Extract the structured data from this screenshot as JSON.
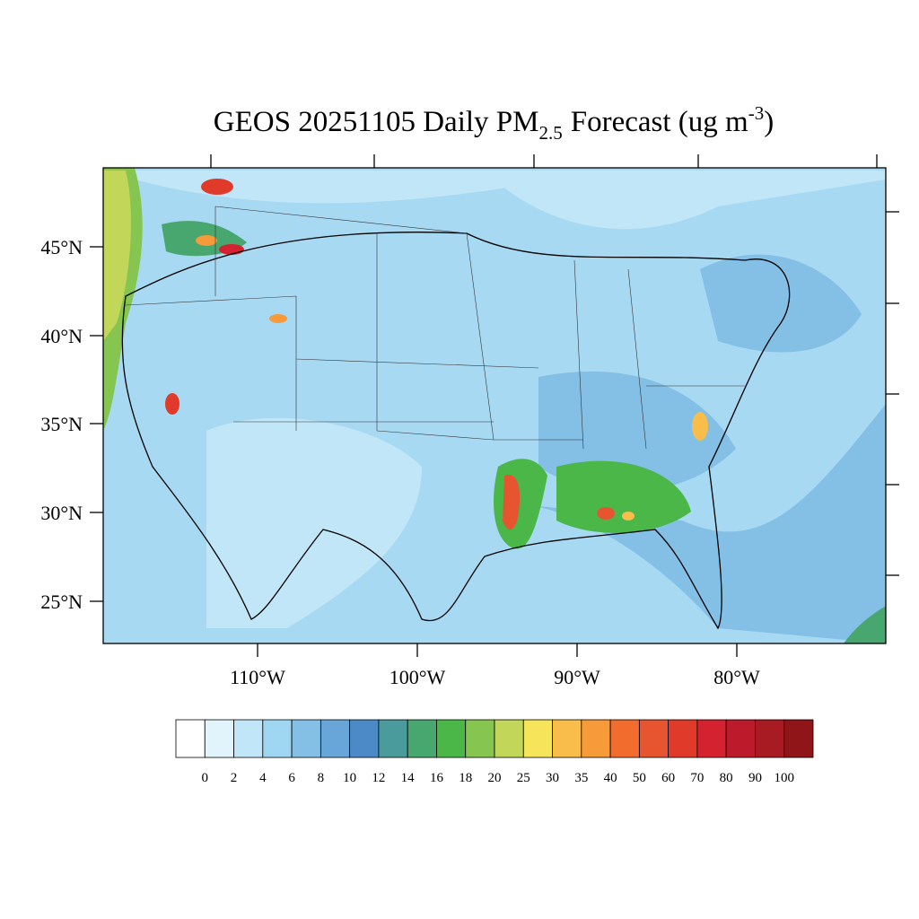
{
  "title": {
    "main": "GEOS 20251105 Daily PM",
    "subscript": "2.5",
    "rest": "Forecast (ug m",
    "superscript": "-3",
    "close": ")"
  },
  "latitude_labels": [
    "45°N",
    "40°N",
    "35°N",
    "30°N",
    "25°N"
  ],
  "longitude_labels": [
    "110°W",
    "100°W",
    "90°W",
    "80°W"
  ],
  "colorbar": {
    "labels": [
      "0",
      "2",
      "4",
      "6",
      "8",
      "10",
      "12",
      "14",
      "16",
      "18",
      "20",
      "25",
      "30",
      "35",
      "40",
      "50",
      "60",
      "70",
      "80",
      "90",
      "100"
    ],
    "colors": [
      "#ffffff",
      "#e1f3fb",
      "#c1e6f7",
      "#9fd6f2",
      "#84bfe6",
      "#68a6d9",
      "#4b8ac7",
      "#4a9b9c",
      "#48a66f",
      "#4ab748",
      "#86c54f",
      "#c2d65a",
      "#f6e55a",
      "#f8bd4b",
      "#f69a3a",
      "#f26d2d",
      "#e75530",
      "#e03b2a",
      "#d42230",
      "#bc1b2b",
      "#a91b22",
      "#8f1518"
    ]
  }
}
